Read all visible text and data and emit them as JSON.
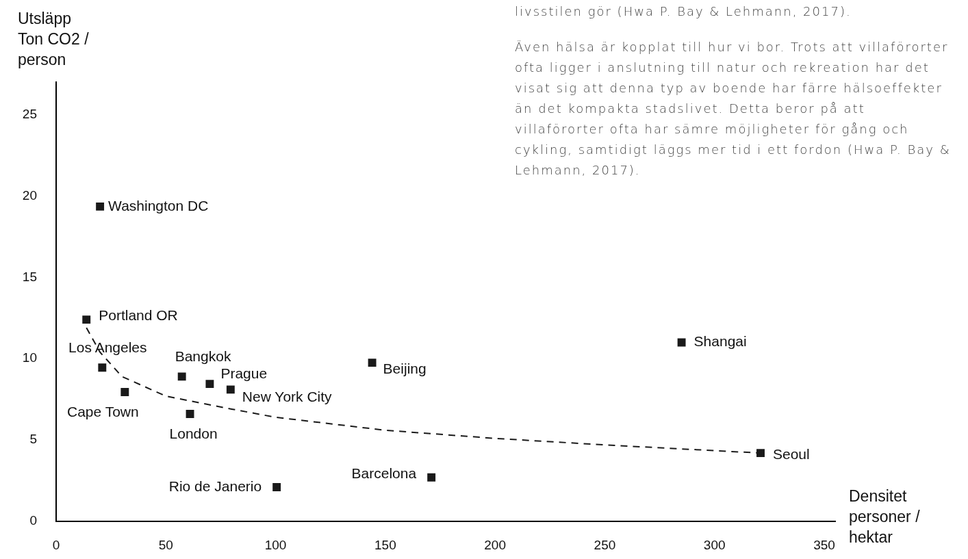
{
  "chart_data": {
    "type": "scatter",
    "xlabel": "Densitet personer / hektar",
    "ylabel": "Utsläpp Ton CO2 / person",
    "xlim": [
      0,
      355
    ],
    "ylim": [
      0,
      27
    ],
    "xticks": [
      0,
      50,
      100,
      150,
      200,
      250,
      300,
      350
    ],
    "yticks": [
      0,
      5,
      10,
      15,
      20,
      25
    ],
    "marker": "square",
    "series": [
      {
        "color": "#1a1a1a",
        "x": [
          20,
          13.8,
          21,
          31.3,
          57.3,
          61,
          70,
          79.5,
          100.5,
          144,
          171,
          285,
          321
        ],
        "values": [
          19.35,
          12.4,
          9.45,
          7.95,
          8.9,
          6.6,
          8.45,
          8.1,
          2.1,
          9.75,
          2.7,
          11,
          4.2
        ]
      },
      {
        "type": "line",
        "line_style": "dashed",
        "marker": "none",
        "color": "#1a1a1a",
        "x": [
          13.8,
          20,
          30,
          50,
          80,
          100,
          150,
          200,
          250,
          321
        ],
        "values": [
          11.9,
          10.4,
          8.9,
          7.7,
          6.9,
          6.4,
          5.6,
          5.1,
          4.7,
          4.2
        ]
      }
    ],
    "annotations": [
      "livsstilen gör (Hwa P. Bay & Lehmann, 2017).",
      "Även hälsa är kopplat till hur vi bor. Trots att villaförorter ofta ligger i anslutning till natur och rekreation har det visat sig att denna typ av boende har färre hälsoeffekter än det kompakta stadslivet. Detta beror på att villaförorter ofta har sämre möjligheter för gång och cykling, samtidigt läggs mer tid i ett fordon (Hwa P. Bay & Lehmann, 2017).",
      {
        "text": "Washington DC",
        "x": 20,
        "y": 19.35
      },
      {
        "text": "Portland OR",
        "x": 13.8,
        "y": 12.4
      },
      {
        "text": "Los Angeles",
        "x": 21,
        "y": 9.45
      },
      {
        "text": "Cape Town",
        "x": 31.3,
        "y": 7.95
      },
      {
        "text": "Bangkok",
        "x": 57.3,
        "y": 8.9
      },
      {
        "text": "London",
        "x": 61,
        "y": 6.6
      },
      {
        "text": "Prague",
        "x": 70,
        "y": 8.45
      },
      {
        "text": "New York City",
        "x": 79.5,
        "y": 8.1
      },
      {
        "text": "Rio de Janerio",
        "x": 100.5,
        "y": 2.1
      },
      {
        "text": "Beijing",
        "x": 144,
        "y": 9.75
      },
      {
        "text": "Barcelona",
        "x": 171,
        "y": 2.7
      },
      {
        "text": "Shangai",
        "x": 285,
        "y": 11
      },
      {
        "text": "Seoul",
        "x": 321,
        "y": 4.2
      }
    ]
  }
}
